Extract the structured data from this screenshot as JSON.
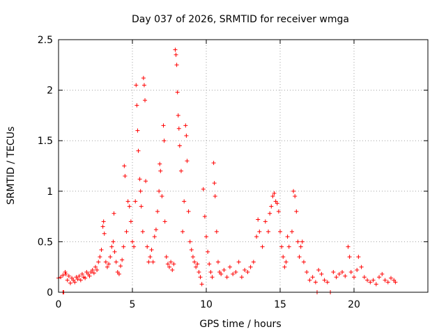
{
  "chart_data": {
    "type": "scatter",
    "title": "Day 037 of 2026, SRMTID for receiver wmga",
    "xlabel": "GPS time / hours",
    "ylabel": "SRMTID / TECUs",
    "xlim": [
      0,
      25
    ],
    "ylim": [
      0,
      2.5
    ],
    "xticks": [
      0,
      5,
      10,
      15,
      20
    ],
    "xtick_labels": [
      "0",
      "5",
      "10",
      "15",
      "20"
    ],
    "yticks": [
      0,
      0.5,
      1,
      1.5,
      2,
      2.5
    ],
    "ytick_labels": [
      "0",
      "0.5",
      "1",
      "1.5",
      "2",
      "2.5"
    ],
    "grid": true,
    "marker": "plus",
    "colors": {
      "points": "#ff0000",
      "grid": "#a0a0a0",
      "axes": "#000000"
    },
    "series": [
      {
        "name": "SRMTID",
        "points": [
          [
            0.0,
            0.14
          ],
          [
            0.15,
            0.15
          ],
          [
            0.3,
            0.17
          ],
          [
            0.3,
            0.0
          ],
          [
            0.35,
            0.0
          ],
          [
            0.45,
            0.2
          ],
          [
            0.5,
            0.18
          ],
          [
            0.6,
            0.12
          ],
          [
            0.7,
            0.16
          ],
          [
            0.8,
            0.09
          ],
          [
            0.9,
            0.14
          ],
          [
            1.0,
            0.12
          ],
          [
            1.1,
            0.1
          ],
          [
            1.2,
            0.15
          ],
          [
            1.3,
            0.13
          ],
          [
            1.4,
            0.16
          ],
          [
            1.5,
            0.12
          ],
          [
            1.6,
            0.18
          ],
          [
            1.7,
            0.15
          ],
          [
            1.8,
            0.14
          ],
          [
            1.9,
            0.2
          ],
          [
            2.0,
            0.18
          ],
          [
            2.1,
            0.16
          ],
          [
            2.2,
            0.2
          ],
          [
            2.3,
            0.22
          ],
          [
            2.4,
            0.19
          ],
          [
            2.5,
            0.25
          ],
          [
            2.6,
            0.22
          ],
          [
            2.7,
            0.3
          ],
          [
            2.8,
            0.35
          ],
          [
            2.9,
            0.42
          ],
          [
            3.0,
            0.65
          ],
          [
            3.05,
            0.7
          ],
          [
            3.1,
            0.58
          ],
          [
            3.2,
            0.3
          ],
          [
            3.3,
            0.25
          ],
          [
            3.4,
            0.28
          ],
          [
            3.5,
            0.35
          ],
          [
            3.6,
            0.45
          ],
          [
            3.7,
            0.5
          ],
          [
            3.75,
            0.78
          ],
          [
            3.8,
            0.4
          ],
          [
            3.9,
            0.3
          ],
          [
            4.0,
            0.2
          ],
          [
            4.1,
            0.18
          ],
          [
            4.2,
            0.26
          ],
          [
            4.3,
            0.32
          ],
          [
            4.4,
            0.45
          ],
          [
            4.45,
            1.25
          ],
          [
            4.5,
            1.15
          ],
          [
            4.6,
            0.6
          ],
          [
            4.7,
            0.9
          ],
          [
            4.8,
            0.85
          ],
          [
            4.9,
            0.7
          ],
          [
            5.0,
            0.5
          ],
          [
            5.1,
            0.45
          ],
          [
            5.2,
            0.9
          ],
          [
            5.25,
            2.05
          ],
          [
            5.3,
            1.85
          ],
          [
            5.35,
            1.6
          ],
          [
            5.4,
            1.4
          ],
          [
            5.5,
            1.12
          ],
          [
            5.55,
            1.0
          ],
          [
            5.6,
            0.85
          ],
          [
            5.7,
            0.6
          ],
          [
            5.75,
            2.12
          ],
          [
            5.8,
            2.05
          ],
          [
            5.85,
            1.9
          ],
          [
            5.9,
            1.1
          ],
          [
            6.0,
            0.45
          ],
          [
            6.1,
            0.3
          ],
          [
            6.2,
            0.35
          ],
          [
            6.3,
            0.42
          ],
          [
            6.4,
            0.3
          ],
          [
            6.5,
            0.55
          ],
          [
            6.6,
            0.62
          ],
          [
            6.7,
            0.8
          ],
          [
            6.8,
            1.0
          ],
          [
            6.85,
            1.27
          ],
          [
            6.9,
            1.2
          ],
          [
            7.0,
            0.95
          ],
          [
            7.1,
            1.65
          ],
          [
            7.15,
            1.5
          ],
          [
            7.2,
            0.7
          ],
          [
            7.3,
            0.35
          ],
          [
            7.4,
            0.28
          ],
          [
            7.5,
            0.25
          ],
          [
            7.6,
            0.3
          ],
          [
            7.7,
            0.22
          ],
          [
            7.8,
            0.28
          ],
          [
            7.9,
            2.4
          ],
          [
            7.95,
            2.35
          ],
          [
            8.0,
            2.25
          ],
          [
            8.05,
            1.98
          ],
          [
            8.1,
            1.75
          ],
          [
            8.15,
            1.62
          ],
          [
            8.2,
            1.45
          ],
          [
            8.3,
            1.2
          ],
          [
            8.4,
            0.6
          ],
          [
            8.5,
            0.9
          ],
          [
            8.6,
            1.65
          ],
          [
            8.65,
            1.55
          ],
          [
            8.7,
            1.3
          ],
          [
            8.8,
            0.8
          ],
          [
            8.9,
            0.5
          ],
          [
            9.0,
            0.42
          ],
          [
            9.1,
            0.35
          ],
          [
            9.2,
            0.3
          ],
          [
            9.3,
            0.25
          ],
          [
            9.4,
            0.28
          ],
          [
            9.5,
            0.2
          ],
          [
            9.6,
            0.15
          ],
          [
            9.7,
            0.08
          ],
          [
            9.8,
            1.02
          ],
          [
            9.9,
            0.75
          ],
          [
            10.0,
            0.55
          ],
          [
            10.1,
            0.4
          ],
          [
            10.2,
            0.28
          ],
          [
            10.3,
            0.2
          ],
          [
            10.4,
            0.15
          ],
          [
            10.5,
            1.28
          ],
          [
            10.55,
            1.08
          ],
          [
            10.6,
            0.95
          ],
          [
            10.7,
            0.6
          ],
          [
            10.8,
            0.3
          ],
          [
            10.9,
            0.2
          ],
          [
            11.0,
            0.18
          ],
          [
            11.2,
            0.22
          ],
          [
            11.4,
            0.15
          ],
          [
            11.6,
            0.25
          ],
          [
            11.8,
            0.18
          ],
          [
            12.0,
            0.2
          ],
          [
            12.2,
            0.3
          ],
          [
            12.4,
            0.15
          ],
          [
            12.6,
            0.22
          ],
          [
            12.8,
            0.2
          ],
          [
            13.0,
            0.25
          ],
          [
            13.2,
            0.3
          ],
          [
            13.4,
            0.55
          ],
          [
            13.5,
            0.72
          ],
          [
            13.6,
            0.6
          ],
          [
            13.8,
            0.45
          ],
          [
            14.0,
            0.7
          ],
          [
            14.2,
            0.6
          ],
          [
            14.3,
            0.78
          ],
          [
            14.4,
            0.85
          ],
          [
            14.5,
            0.95
          ],
          [
            14.6,
            0.98
          ],
          [
            14.7,
            0.9
          ],
          [
            14.8,
            0.88
          ],
          [
            14.9,
            0.8
          ],
          [
            15.0,
            0.6
          ],
          [
            15.1,
            0.45
          ],
          [
            15.2,
            0.35
          ],
          [
            15.3,
            0.25
          ],
          [
            15.4,
            0.3
          ],
          [
            15.5,
            0.55
          ],
          [
            15.6,
            0.45
          ],
          [
            15.8,
            0.6
          ],
          [
            15.9,
            1.0
          ],
          [
            16.0,
            0.95
          ],
          [
            16.1,
            0.8
          ],
          [
            16.2,
            0.5
          ],
          [
            16.3,
            0.35
          ],
          [
            16.4,
            0.45
          ],
          [
            16.5,
            0.5
          ],
          [
            16.6,
            0.3
          ],
          [
            16.8,
            0.2
          ],
          [
            17.0,
            0.12
          ],
          [
            17.2,
            0.15
          ],
          [
            17.4,
            0.1
          ],
          [
            17.5,
            0.0
          ],
          [
            17.6,
            0.22
          ],
          [
            17.8,
            0.18
          ],
          [
            18.0,
            0.12
          ],
          [
            18.2,
            0.1
          ],
          [
            18.4,
            0.0
          ],
          [
            18.6,
            0.2
          ],
          [
            18.8,
            0.15
          ],
          [
            19.0,
            0.18
          ],
          [
            19.2,
            0.2
          ],
          [
            19.4,
            0.16
          ],
          [
            19.6,
            0.45
          ],
          [
            19.7,
            0.35
          ],
          [
            19.8,
            0.2
          ],
          [
            20.0,
            0.15
          ],
          [
            20.2,
            0.22
          ],
          [
            20.3,
            0.35
          ],
          [
            20.5,
            0.25
          ],
          [
            20.7,
            0.15
          ],
          [
            20.9,
            0.12
          ],
          [
            21.1,
            0.1
          ],
          [
            21.3,
            0.12
          ],
          [
            21.5,
            0.08
          ],
          [
            21.7,
            0.15
          ],
          [
            21.9,
            0.18
          ],
          [
            22.1,
            0.12
          ],
          [
            22.3,
            0.1
          ],
          [
            22.5,
            0.14
          ],
          [
            22.7,
            0.12
          ],
          [
            22.8,
            0.1
          ]
        ]
      }
    ]
  }
}
